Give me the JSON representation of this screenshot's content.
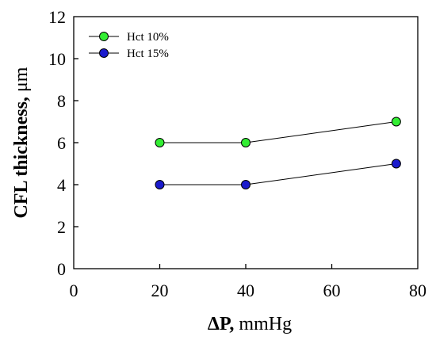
{
  "chart_data": {
    "type": "scatter",
    "title": "",
    "xlabel_bold": "ΔP,",
    "xlabel_rest": " mmHg",
    "ylabel_bold": "CFL thickness,",
    "ylabel_rest": " μm",
    "xlim": [
      0,
      80
    ],
    "ylim": [
      0,
      12
    ],
    "xticks": [
      0,
      20,
      40,
      60,
      80
    ],
    "yticks": [
      0,
      2,
      4,
      6,
      8,
      10,
      12
    ],
    "grid": false,
    "legend_position": "top-left",
    "series": [
      {
        "name": "Hct 10%",
        "color": "#33ee33",
        "x": [
          20,
          40,
          75
        ],
        "y": [
          6,
          6,
          7
        ]
      },
      {
        "name": "Hct 15%",
        "color": "#1a1acc",
        "x": [
          20,
          40,
          75
        ],
        "y": [
          4,
          4,
          5
        ]
      }
    ]
  }
}
